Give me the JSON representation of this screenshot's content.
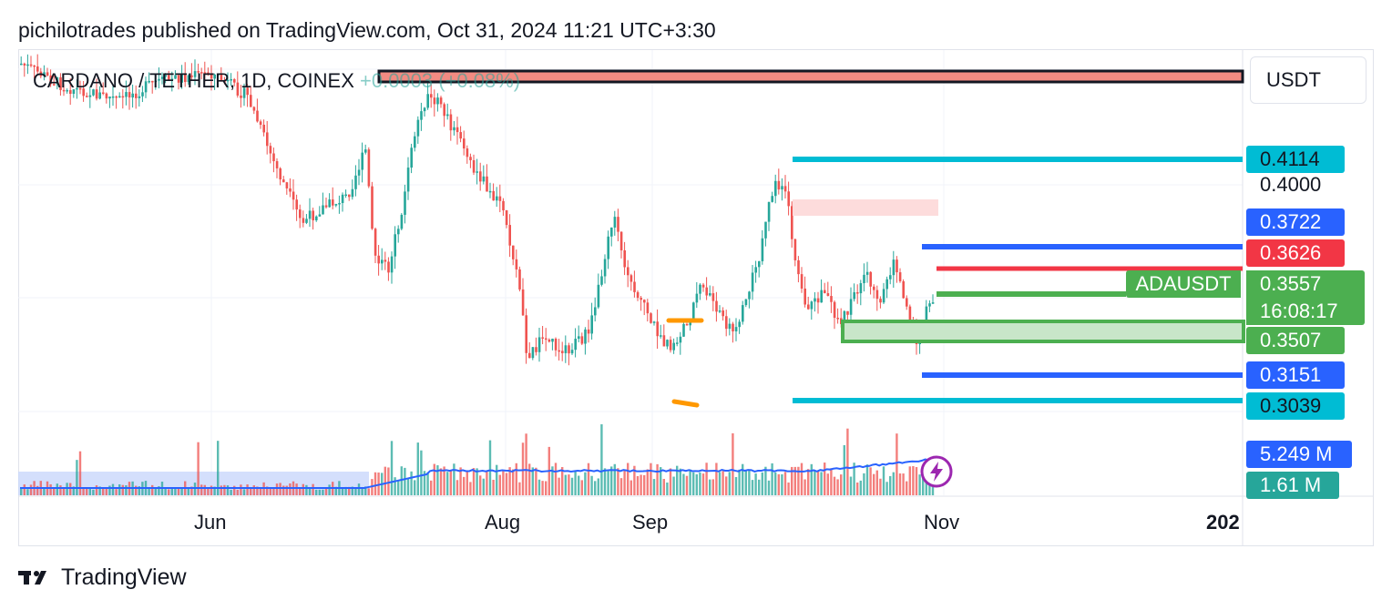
{
  "header": {
    "published_line": "pichilotrades published on TradingView.com, Oct 31, 2024 11:21 UTC+3:30"
  },
  "symbol": {
    "title": "CARDANO / TETHER, 1D, COINEX",
    "change": "+0.0003 (+0.08%)"
  },
  "currency_button": "USDT",
  "price_scale": {
    "labels": [
      {
        "text": "0.4114",
        "bg": "#00bcd4",
        "fg": "#131722"
      },
      {
        "text": "0.4000",
        "bg": "transparent",
        "fg": "#131722"
      },
      {
        "text": "0.3722",
        "bg": "#2962ff",
        "fg": "#ffffff"
      },
      {
        "text": "0.3626",
        "bg": "#f23645",
        "fg": "#ffffff"
      },
      {
        "text": "0.3507",
        "bg": "#4caf50",
        "fg": "#ffffff"
      },
      {
        "text": "0.3151",
        "bg": "#2962ff",
        "fg": "#ffffff"
      },
      {
        "text": "0.3039",
        "bg": "#00bcd4",
        "fg": "#131722"
      },
      {
        "text": "5.249 M",
        "bg": "#2962ff",
        "fg": "#ffffff"
      },
      {
        "text": "1.61 M",
        "bg": "#26a69a",
        "fg": "#ffffff"
      }
    ],
    "current": {
      "symbol": "ADAUSDT",
      "price": "0.3557",
      "countdown": "16:08:17"
    }
  },
  "time_axis": [
    "Jun",
    "Aug",
    "Sep",
    "Nov",
    "202"
  ],
  "drawings": {
    "levels": [
      {
        "price": 0.4114,
        "color": "#00bcd4"
      },
      {
        "price": 0.3722,
        "color": "#2962ff"
      },
      {
        "price": 0.3626,
        "color": "#f23645"
      },
      {
        "price": 0.3557,
        "color": "#4caf50"
      },
      {
        "price": 0.3151,
        "color": "#2962ff"
      },
      {
        "price": 0.3039,
        "color": "#00bcd4"
      }
    ],
    "zone_low": 0.3507
  },
  "colors": {
    "up": "#26a69a",
    "down": "#ef5350",
    "ma": "#2962ff"
  },
  "footer": {
    "brand": "TradingView"
  }
}
